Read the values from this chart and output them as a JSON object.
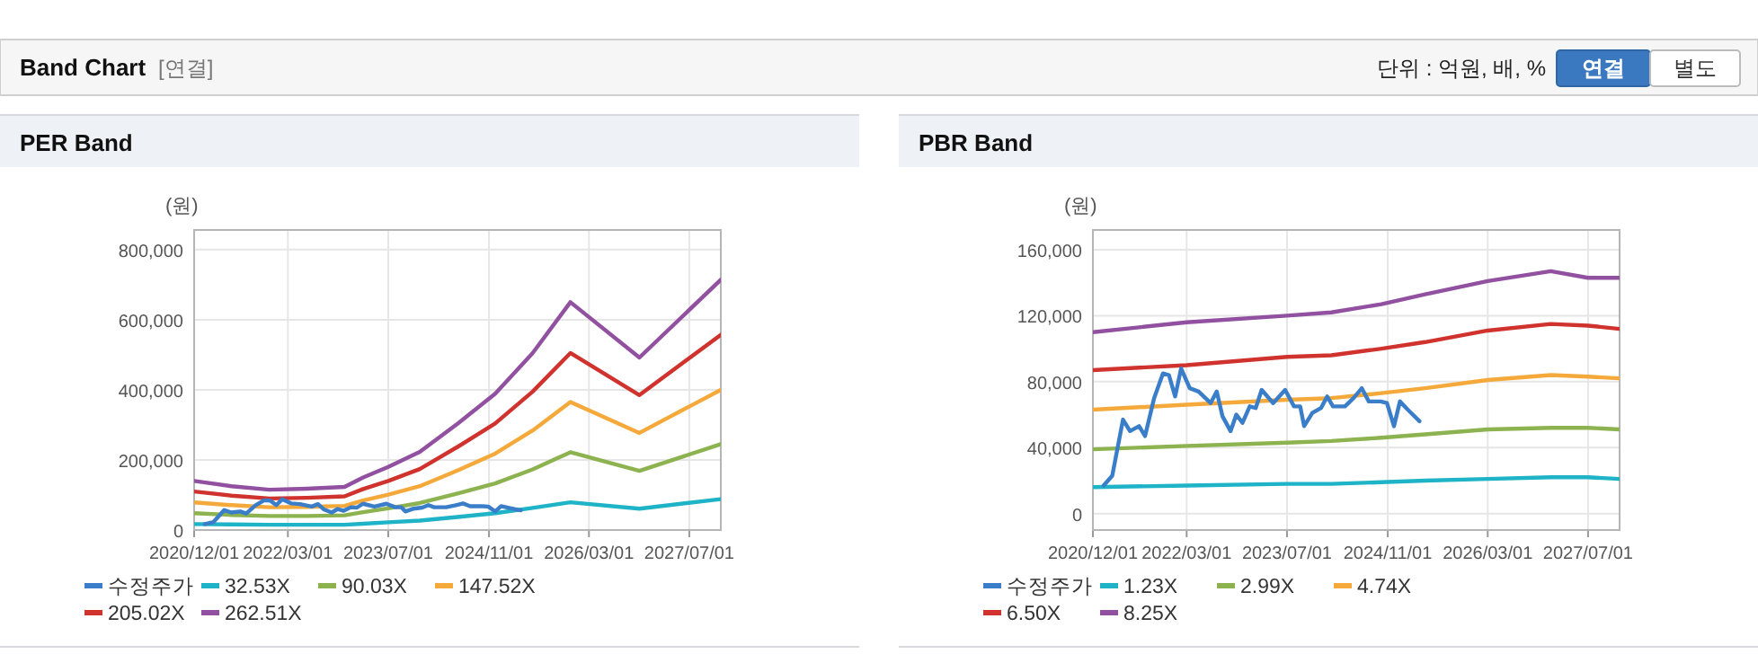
{
  "chart_data": [
    {
      "type": "other",
      "title": "Band Chart",
      "annotations": [
        "[연결]",
        "단위 : 억원, 배, %",
        "연결",
        "별도"
      ]
    },
    {
      "type": "line",
      "title": "PER Band",
      "ylabel": "(원)",
      "grid": true,
      "legend": "bottom",
      "marker": "none",
      "line_style": "solid",
      "xlim": [
        "2020-12-01",
        "2027-12-01"
      ],
      "xticks": [
        {
          "value": "2020-12-01",
          "label": "2020/12/01"
        },
        {
          "value": "2022-03-01",
          "label": "2022/03/01"
        },
        {
          "value": "2023-07-01",
          "label": "2023/07/01"
        },
        {
          "value": "2024-11-01",
          "label": "2024/11/01"
        },
        {
          "value": "2026-03-01",
          "label": "2026/03/01"
        },
        {
          "value": "2027-07-01",
          "label": "2027/07/01"
        }
      ],
      "ylim": [
        0,
        856000
      ],
      "yticks": [
        0,
        {
          "value": 200000,
          "label": "200,000"
        },
        {
          "value": 400000,
          "label": "400,000"
        },
        {
          "value": 600000,
          "label": "600,000"
        },
        {
          "value": 800000,
          "label": "800,000"
        }
      ],
      "x": [
        "2020-12-01",
        "2021-06-01",
        "2021-12-01",
        "2022-06-01",
        "2022-12-01",
        "2023-03-01",
        "2023-07-01",
        "2023-12-01",
        "2024-06-01",
        "2024-12-01",
        "2025-06-01",
        "2025-12-01",
        "2026-11-01",
        "2027-12-01"
      ],
      "series": [
        {
          "name": "수정주가",
          "color": "#3a7dc9",
          "x": [
            "2021-01-22",
            "2021-03-05",
            "2021-04-26",
            "2021-05-30",
            "2021-07-13",
            "2021-08-11",
            "2021-09-24",
            "2021-11-06",
            "2021-12-05",
            "2022-01-04",
            "2022-02-02",
            "2022-03-16",
            "2022-04-28",
            "2022-06-25",
            "2022-07-25",
            "2022-08-22",
            "2022-09-30",
            "2022-10-28",
            "2022-11-27",
            "2023-01-01",
            "2023-01-30",
            "2023-02-28",
            "2023-04-25",
            "2023-06-22",
            "2023-08-04",
            "2023-09-03",
            "2023-09-22",
            "2023-11-01",
            "2023-12-13",
            "2024-01-12",
            "2024-02-09",
            "2024-04-07",
            "2024-05-19",
            "2024-06-28",
            "2024-08-01",
            "2024-09-28",
            "2024-10-28",
            "2024-12-01",
            "2024-12-30",
            "2025-02-06",
            "2025-04-04"
          ],
          "values": [
            17000,
            23000,
            57000,
            50000,
            53000,
            47000,
            70000,
            85000,
            84000,
            71000,
            88000,
            76000,
            74000,
            67000,
            74000,
            59000,
            50000,
            60000,
            55000,
            65000,
            64000,
            75000,
            67000,
            75000,
            65000,
            65000,
            53000,
            61000,
            64000,
            71000,
            65000,
            65000,
            70000,
            76000,
            68000,
            68000,
            67000,
            53000,
            68000,
            63000,
            56000
          ]
        },
        {
          "name": "32.53X",
          "color": "#1fb3c8",
          "values": [
            17000,
            16000,
            15000,
            15000,
            15000,
            18000,
            22000,
            27000,
            37000,
            48000,
            63000,
            79000,
            61000,
            88000
          ]
        },
        {
          "name": "90.03X",
          "color": "#8cb34f",
          "values": [
            48000,
            43000,
            40000,
            40000,
            42000,
            51000,
            62000,
            77000,
            104000,
            133000,
            173000,
            222000,
            169000,
            245000
          ]
        },
        {
          "name": "147.52X",
          "color": "#f5a93b",
          "values": [
            79000,
            71000,
            65000,
            66000,
            69000,
            84000,
            101000,
            125000,
            170000,
            218000,
            284000,
            365000,
            277000,
            400000
          ]
        },
        {
          "name": "205.02X",
          "color": "#d0322d",
          "values": [
            110000,
            98000,
            90000,
            92000,
            96000,
            117000,
            140000,
            174000,
            237000,
            304000,
            395000,
            505000,
            385000,
            557000
          ]
        },
        {
          "name": "262.51X",
          "color": "#9150a0",
          "values": [
            140000,
            125000,
            115000,
            118000,
            123000,
            150000,
            180000,
            223000,
            303000,
            389000,
            505000,
            650000,
            492000,
            714000
          ]
        }
      ]
    },
    {
      "type": "line",
      "title": "PBR Band",
      "ylabel": "(원)",
      "grid": true,
      "legend": "bottom",
      "marker": "none",
      "line_style": "solid",
      "xlim": [
        "2020-12-01",
        "2027-12-01"
      ],
      "xticks": [
        {
          "value": "2020-12-01",
          "label": "2020/12/01"
        },
        {
          "value": "2022-03-01",
          "label": "2022/03/01"
        },
        {
          "value": "2023-07-01",
          "label": "2023/07/01"
        },
        {
          "value": "2024-11-01",
          "label": "2024/11/01"
        },
        {
          "value": "2026-03-01",
          "label": "2026/03/01"
        },
        {
          "value": "2027-07-01",
          "label": "2027/07/01"
        }
      ],
      "ylim": [
        -10000,
        172000
      ],
      "yticks": [
        0,
        {
          "value": 40000,
          "label": "40,000"
        },
        {
          "value": 80000,
          "label": "80,000"
        },
        {
          "value": 120000,
          "label": "120,000"
        },
        {
          "value": 160000,
          "label": "160,000"
        }
      ],
      "x": [
        "2020-12-01",
        "2022-03-01",
        "2023-07-01",
        "2024-02-01",
        "2024-10-01",
        "2025-05-01",
        "2026-03-01",
        "2027-01-01",
        "2027-07-01",
        "2027-12-01"
      ],
      "series": [
        {
          "name": "수정주가",
          "color": "#3a7dc9",
          "x": [
            "2021-01-22",
            "2021-03-05",
            "2021-04-26",
            "2021-05-30",
            "2021-07-13",
            "2021-08-11",
            "2021-09-24",
            "2021-11-06",
            "2021-12-05",
            "2022-01-04",
            "2022-02-02",
            "2022-03-16",
            "2022-04-28",
            "2022-06-25",
            "2022-07-25",
            "2022-08-22",
            "2022-09-30",
            "2022-10-28",
            "2022-11-27",
            "2023-01-01",
            "2023-01-30",
            "2023-02-28",
            "2023-04-25",
            "2023-06-22",
            "2023-08-04",
            "2023-09-03",
            "2023-09-22",
            "2023-11-01",
            "2023-12-13",
            "2024-01-12",
            "2024-02-09",
            "2024-04-07",
            "2024-05-19",
            "2024-06-28",
            "2024-08-01",
            "2024-09-28",
            "2024-10-28",
            "2024-12-01",
            "2024-12-30",
            "2025-02-06",
            "2025-04-04"
          ],
          "values": [
            17000,
            23000,
            57000,
            50000,
            53000,
            47000,
            70000,
            85000,
            84000,
            71000,
            88000,
            76000,
            74000,
            67000,
            74000,
            59000,
            50000,
            60000,
            55000,
            65000,
            64000,
            75000,
            67000,
            75000,
            65000,
            65000,
            53000,
            61000,
            64000,
            71000,
            65000,
            65000,
            70000,
            76000,
            68000,
            68000,
            67000,
            53000,
            68000,
            63000,
            56000
          ]
        },
        {
          "name": "1.23X",
          "color": "#1fb3c8",
          "values": [
            16000,
            17000,
            18000,
            18000,
            19000,
            20000,
            21000,
            22000,
            22000,
            21000
          ]
        },
        {
          "name": "2.99X",
          "color": "#8cb34f",
          "values": [
            39000,
            41000,
            43000,
            44000,
            46000,
            48000,
            51000,
            52000,
            52000,
            51000
          ]
        },
        {
          "name": "4.74X",
          "color": "#f5a93b",
          "values": [
            63000,
            66000,
            69000,
            70000,
            73000,
            76000,
            81000,
            84000,
            83000,
            82000
          ]
        },
        {
          "name": "6.50X",
          "color": "#d0322d",
          "values": [
            87000,
            90000,
            95000,
            96000,
            100000,
            104000,
            111000,
            115000,
            114000,
            112000
          ]
        },
        {
          "name": "8.25X",
          "color": "#9150a0",
          "values": [
            110000,
            116000,
            120000,
            122000,
            127000,
            133000,
            141000,
            147000,
            143000,
            143000
          ]
        }
      ]
    }
  ]
}
